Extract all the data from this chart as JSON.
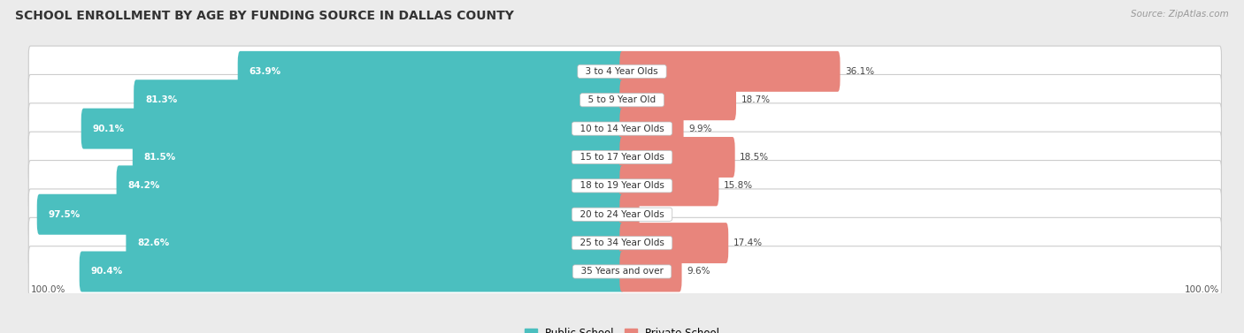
{
  "title": "SCHOOL ENROLLMENT BY AGE BY FUNDING SOURCE IN DALLAS COUNTY",
  "source": "Source: ZipAtlas.com",
  "categories": [
    "3 to 4 Year Olds",
    "5 to 9 Year Old",
    "10 to 14 Year Olds",
    "15 to 17 Year Olds",
    "18 to 19 Year Olds",
    "20 to 24 Year Olds",
    "25 to 34 Year Olds",
    "35 Years and over"
  ],
  "public_values": [
    63.9,
    81.3,
    90.1,
    81.5,
    84.2,
    97.5,
    82.6,
    90.4
  ],
  "private_values": [
    36.1,
    18.7,
    9.9,
    18.5,
    15.8,
    2.5,
    17.4,
    9.6
  ],
  "public_color": "#4BBFBF",
  "private_color": "#E8857C",
  "background_color": "#EBEBEB",
  "title_fontsize": 10,
  "label_fontsize": 7.5,
  "bar_label_fontsize": 7.5,
  "legend_fontsize": 8.5,
  "source_fontsize": 7.5
}
